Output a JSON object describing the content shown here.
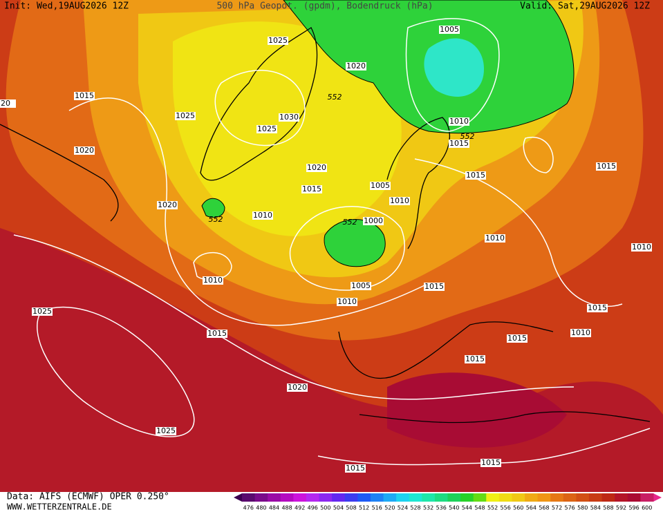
{
  "header": {
    "init": "Init: Wed,19AUG2026 12Z",
    "title": "500 hPa Geopot. (gpdm), Bodendruck (hPa)",
    "valid": "Valid: Sat,29AUG2026 12Z"
  },
  "map": {
    "pressure_labels": [
      "1015",
      "1025",
      "1020",
      "1020",
      "1025",
      "1020",
      "1030",
      "1025",
      "1020",
      "1015",
      "1005",
      "1010",
      "1015",
      "1015",
      "1015",
      "1005",
      "1010",
      "1010",
      "1000",
      "1010",
      "1010",
      "1010",
      "1005",
      "1010",
      "1015",
      "1015",
      "1015",
      "1010",
      "1015",
      "1025",
      "1015",
      "1020",
      "1025",
      "1015",
      "1015",
      "20"
    ],
    "geopotential_labels": [
      "552",
      "552",
      "552",
      "552"
    ]
  },
  "footer": {
    "data": "Data: AIFS (ECMWF) OPER 0.250°",
    "website": "WWW.WETTERZENTRALE.DE"
  },
  "colorbar": {
    "labels": [
      "476",
      "480",
      "484",
      "488",
      "492",
      "496",
      "500",
      "504",
      "508",
      "512",
      "516",
      "520",
      "524",
      "528",
      "532",
      "536",
      "540",
      "544",
      "548",
      "552",
      "556",
      "560",
      "564",
      "568",
      "572",
      "576",
      "580",
      "584",
      "588",
      "592",
      "596",
      "600"
    ]
  }
}
